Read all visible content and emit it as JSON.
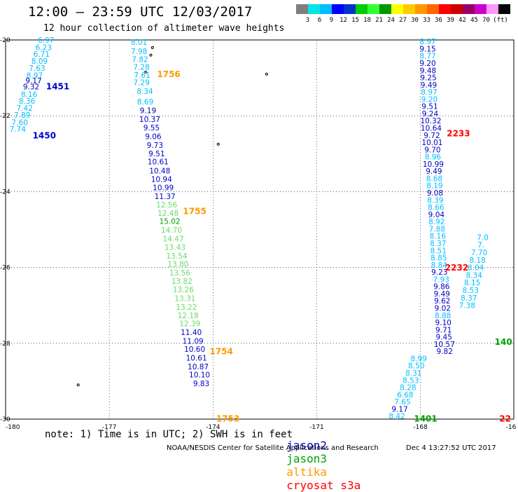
{
  "header": {
    "title": "12:00 – 23:59 UTC 12/03/2017",
    "subtitle": "12 hour collection of altimeter wave heights"
  },
  "color_scale": {
    "unit": "(ft)",
    "colors": [
      "#7f7f7f",
      "#00e6e6",
      "#00bfff",
      "#0000ff",
      "#0033cc",
      "#00cc00",
      "#33ff33",
      "#009900",
      "#ffff00",
      "#ffcc00",
      "#ff9900",
      "#ff6600",
      "#ff0000",
      "#cc0000",
      "#990066",
      "#cc00cc",
      "#ff99ff",
      "#000000"
    ],
    "labels": [
      "3",
      "6",
      "9",
      "12",
      "15",
      "18",
      "21",
      "24",
      "27",
      "30",
      "33",
      "36",
      "39",
      "42",
      "45",
      "70"
    ]
  },
  "axes": {
    "x_ticks": [
      "-180",
      "-177",
      "-174",
      "-171",
      "-168",
      "-16"
    ],
    "y_ticks": [
      "-20",
      "-22",
      "-24",
      "-26",
      "-28",
      "-30"
    ]
  },
  "satellite_colors": {
    "jason2": "#0000c8",
    "jason2_light": "#00bfff",
    "jason3": "#00a000",
    "jason3_light": "#66dd66",
    "altika": "#ff9900",
    "cryosat": "#ff0000"
  },
  "tracks": [
    {
      "id": "t1451",
      "time_labels": [
        {
          "text": "1451",
          "lat": -21.23,
          "color": "jason2"
        },
        {
          "text": "1450",
          "lat": -22.52,
          "color": "jason2"
        }
      ],
      "points": [
        {
          "lon": -178.83,
          "lat": -20.0,
          "v": "6.97",
          "c": "jason2_light"
        },
        {
          "lon": -178.9,
          "lat": -20.19,
          "v": "6.23",
          "c": "jason2_light"
        },
        {
          "lon": -178.96,
          "lat": -20.37,
          "v": "6.71",
          "c": "jason2_light"
        },
        {
          "lon": -179.02,
          "lat": -20.55,
          "v": "8.09",
          "c": "jason2_light"
        },
        {
          "lon": -179.09,
          "lat": -20.74,
          "v": "7.63",
          "c": "jason2_light"
        },
        {
          "lon": -179.16,
          "lat": -20.93,
          "v": "8.97",
          "c": "jason2_light"
        },
        {
          "lon": -179.19,
          "lat": -21.07,
          "v": "9.17",
          "c": "jason2"
        },
        {
          "lon": -179.26,
          "lat": -21.23,
          "v": "9.32",
          "c": "jason2"
        },
        {
          "lon": -179.32,
          "lat": -21.43,
          "v": "8.16",
          "c": "jason2_light"
        },
        {
          "lon": -179.38,
          "lat": -21.61,
          "v": "8.36",
          "c": "jason2_light"
        },
        {
          "lon": -179.45,
          "lat": -21.79,
          "v": "7.42",
          "c": "jason2_light"
        },
        {
          "lon": -179.52,
          "lat": -21.98,
          "v": "7.89",
          "c": "jason2_light"
        },
        {
          "lon": -179.59,
          "lat": -22.17,
          "v": "7.60",
          "c": "jason2_light"
        },
        {
          "lon": -179.65,
          "lat": -22.35,
          "v": "7.74",
          "c": "jason2_light"
        }
      ]
    },
    {
      "id": "t1756",
      "time_labels": [
        {
          "text": "1756",
          "lat": -20.91,
          "color": "altika"
        },
        {
          "text": "1755",
          "lat": -24.52,
          "color": "altika"
        },
        {
          "text": "1754",
          "lat": -28.22,
          "color": "altika"
        },
        {
          "text": "1753",
          "lat": -29.99,
          "color": "altika"
        }
      ],
      "points": [
        {
          "lon": -176.14,
          "lat": -20.06,
          "v": "8.01",
          "c": "jason2_light"
        },
        {
          "lon": -176.14,
          "lat": -20.3,
          "v": "7.98",
          "c": "jason2_light"
        },
        {
          "lon": -176.11,
          "lat": -20.51,
          "v": "7.82",
          "c": "jason2_light"
        },
        {
          "lon": -176.07,
          "lat": -20.71,
          "v": "7.28",
          "c": "jason2_light"
        },
        {
          "lon": -176.05,
          "lat": -20.92,
          "v": "7.61",
          "c": "jason2_light"
        },
        {
          "lon": -176.07,
          "lat": -21.12,
          "v": "7.29",
          "c": "jason2_light"
        },
        {
          "lon": -175.97,
          "lat": -21.35,
          "v": "8.34",
          "c": "jason2_light"
        },
        {
          "lon": -175.96,
          "lat": -21.63,
          "v": "8.69",
          "c": "jason2_light"
        },
        {
          "lon": -175.88,
          "lat": -21.86,
          "v": "9.19",
          "c": "jason2"
        },
        {
          "lon": -175.83,
          "lat": -22.09,
          "v": "10.37",
          "c": "jason2"
        },
        {
          "lon": -175.78,
          "lat": -22.31,
          "v": "9.55",
          "c": "jason2"
        },
        {
          "lon": -175.73,
          "lat": -22.54,
          "v": "9.06",
          "c": "jason2"
        },
        {
          "lon": -175.68,
          "lat": -22.77,
          "v": "9.73",
          "c": "jason2"
        },
        {
          "lon": -175.63,
          "lat": -22.99,
          "v": "9.51",
          "c": "jason2"
        },
        {
          "lon": -175.59,
          "lat": -23.21,
          "v": "10.61",
          "c": "jason2"
        },
        {
          "lon": -175.54,
          "lat": -23.45,
          "v": "10.48",
          "c": "jason2"
        },
        {
          "lon": -175.49,
          "lat": -23.67,
          "v": "10.94",
          "c": "jason2"
        },
        {
          "lon": -175.44,
          "lat": -23.89,
          "v": "10.99",
          "c": "jason2"
        },
        {
          "lon": -175.39,
          "lat": -24.12,
          "v": "11.37",
          "c": "jason2"
        },
        {
          "lon": -175.34,
          "lat": -24.34,
          "v": "12.56",
          "c": "jason3_light"
        },
        {
          "lon": -175.3,
          "lat": -24.57,
          "v": "12.48",
          "c": "jason3_light"
        },
        {
          "lon": -175.25,
          "lat": -24.78,
          "v": "15.02",
          "c": "jason3"
        },
        {
          "lon": -175.2,
          "lat": -25.01,
          "v": "14.70",
          "c": "jason3_light"
        },
        {
          "lon": -175.15,
          "lat": -25.24,
          "v": "14.47",
          "c": "jason3_light"
        },
        {
          "lon": -175.1,
          "lat": -25.46,
          "v": "13.43",
          "c": "jason3_light"
        },
        {
          "lon": -175.05,
          "lat": -25.69,
          "v": "13.54",
          "c": "jason3_light"
        },
        {
          "lon": -175.01,
          "lat": -25.91,
          "v": "13.80",
          "c": "jason3_light"
        },
        {
          "lon": -174.96,
          "lat": -26.14,
          "v": "13.56",
          "c": "jason3_light"
        },
        {
          "lon": -174.9,
          "lat": -26.36,
          "v": "13.82",
          "c": "jason3_light"
        },
        {
          "lon": -174.86,
          "lat": -26.58,
          "v": "13.26",
          "c": "jason3_light"
        },
        {
          "lon": -174.81,
          "lat": -26.81,
          "v": "13.31",
          "c": "jason3_light"
        },
        {
          "lon": -174.77,
          "lat": -27.04,
          "v": "13.22",
          "c": "jason3_light"
        },
        {
          "lon": -174.72,
          "lat": -27.26,
          "v": "12.18",
          "c": "jason3_light"
        },
        {
          "lon": -174.67,
          "lat": -27.48,
          "v": "12.39",
          "c": "jason3_light"
        },
        {
          "lon": -174.63,
          "lat": -27.71,
          "v": "11.40",
          "c": "jason2"
        },
        {
          "lon": -174.58,
          "lat": -27.94,
          "v": "11.09",
          "c": "jason2"
        },
        {
          "lon": -174.53,
          "lat": -28.15,
          "v": "10.60",
          "c": "jason2"
        },
        {
          "lon": -174.48,
          "lat": -28.38,
          "v": "10.61",
          "c": "jason2"
        },
        {
          "lon": -174.43,
          "lat": -28.61,
          "v": "10.87",
          "c": "jason2"
        },
        {
          "lon": -174.39,
          "lat": -28.83,
          "v": "10.10",
          "c": "jason2"
        },
        {
          "lon": -174.34,
          "lat": -29.06,
          "v": "9.83",
          "c": "jason2"
        }
      ]
    },
    {
      "id": "t2233",
      "time_labels": [
        {
          "text": "2233",
          "lat": -22.47,
          "color": "cryosat"
        },
        {
          "text": "2232",
          "lat": -26.01,
          "color": "cryosat"
        },
        {
          "text": "1401",
          "lat": -29.99,
          "color": "jason3"
        },
        {
          "text": "140",
          "lat": -27.97,
          "color": "jason3"
        },
        {
          "text": "22",
          "lat": -29.99,
          "color": "cryosat"
        }
      ],
      "points": [
        {
          "lon": -167.79,
          "lat": -20.04,
          "v": "8.97",
          "c": "jason2_light"
        },
        {
          "lon": -167.79,
          "lat": -20.23,
          "v": "9.15",
          "c": "jason2"
        },
        {
          "lon": -167.79,
          "lat": -20.42,
          "v": "8.77",
          "c": "jason2_light"
        },
        {
          "lon": -167.79,
          "lat": -20.61,
          "v": "9.20",
          "c": "jason2"
        },
        {
          "lon": -167.78,
          "lat": -20.8,
          "v": "9.48",
          "c": "jason2"
        },
        {
          "lon": -167.77,
          "lat": -20.99,
          "v": "9.25",
          "c": "jason2"
        },
        {
          "lon": -167.76,
          "lat": -21.18,
          "v": "9.49",
          "c": "jason2"
        },
        {
          "lon": -167.75,
          "lat": -21.37,
          "v": "8.97",
          "c": "jason2_light"
        },
        {
          "lon": -167.74,
          "lat": -21.56,
          "v": "9.20",
          "c": "jason2_light"
        },
        {
          "lon": -167.73,
          "lat": -21.75,
          "v": "9.51",
          "c": "jason2"
        },
        {
          "lon": -167.72,
          "lat": -21.94,
          "v": "9.24",
          "c": "jason2"
        },
        {
          "lon": -167.7,
          "lat": -22.13,
          "v": "10.32",
          "c": "jason2"
        },
        {
          "lon": -167.69,
          "lat": -22.32,
          "v": "10.64",
          "c": "jason2"
        },
        {
          "lon": -167.67,
          "lat": -22.51,
          "v": "9.72",
          "c": "jason2"
        },
        {
          "lon": -167.66,
          "lat": -22.7,
          "v": "10.01",
          "c": "jason2"
        },
        {
          "lon": -167.65,
          "lat": -22.89,
          "v": "9.70",
          "c": "jason2"
        },
        {
          "lon": -167.64,
          "lat": -23.08,
          "v": "8.96",
          "c": "jason2_light"
        },
        {
          "lon": -167.63,
          "lat": -23.27,
          "v": "10.99",
          "c": "jason2"
        },
        {
          "lon": -167.61,
          "lat": -23.46,
          "v": "9.49",
          "c": "jason2"
        },
        {
          "lon": -167.6,
          "lat": -23.65,
          "v": "8.68",
          "c": "jason2_light"
        },
        {
          "lon": -167.59,
          "lat": -23.84,
          "v": "8.19",
          "c": "jason2_light"
        },
        {
          "lon": -167.58,
          "lat": -24.03,
          "v": "9.08",
          "c": "jason2"
        },
        {
          "lon": -167.57,
          "lat": -24.22,
          "v": "8.39",
          "c": "jason2_light"
        },
        {
          "lon": -167.55,
          "lat": -24.41,
          "v": "8.66",
          "c": "jason2_light"
        },
        {
          "lon": -167.54,
          "lat": -24.6,
          "v": "9.04",
          "c": "jason2"
        },
        {
          "lon": -167.53,
          "lat": -24.79,
          "v": "8.92",
          "c": "jason2_light"
        },
        {
          "lon": -167.52,
          "lat": -24.98,
          "v": "7.88",
          "c": "jason2_light"
        },
        {
          "lon": -167.5,
          "lat": -25.17,
          "v": "8.16",
          "c": "jason2_light"
        },
        {
          "lon": -167.49,
          "lat": -25.36,
          "v": "8.37",
          "c": "jason2_light"
        },
        {
          "lon": -167.48,
          "lat": -25.55,
          "v": "8.51",
          "c": "jason2_light"
        },
        {
          "lon": -167.47,
          "lat": -25.74,
          "v": "8.85",
          "c": "jason2_light"
        },
        {
          "lon": -167.46,
          "lat": -25.93,
          "v": "8.84",
          "c": "jason2_light"
        },
        {
          "lon": -167.45,
          "lat": -26.12,
          "v": "9.23",
          "c": "jason2"
        },
        {
          "lon": -167.4,
          "lat": -26.31,
          "v": "7.93",
          "c": "jason2_light"
        },
        {
          "lon": -167.39,
          "lat": -26.5,
          "v": "9.86",
          "c": "jason2"
        },
        {
          "lon": -167.38,
          "lat": -26.69,
          "v": "9.49",
          "c": "jason2"
        },
        {
          "lon": -167.37,
          "lat": -26.88,
          "v": "9.62",
          "c": "jason2"
        },
        {
          "lon": -167.36,
          "lat": -27.07,
          "v": "9.02",
          "c": "jason2"
        },
        {
          "lon": -167.35,
          "lat": -27.26,
          "v": "8.88",
          "c": "jason2_light"
        },
        {
          "lon": -167.34,
          "lat": -27.45,
          "v": "9.10",
          "c": "jason2"
        },
        {
          "lon": -167.33,
          "lat": -27.64,
          "v": "9.71",
          "c": "jason2"
        },
        {
          "lon": -167.32,
          "lat": -27.83,
          "v": "9.45",
          "c": "jason2"
        },
        {
          "lon": -167.31,
          "lat": -28.02,
          "v": "10.57",
          "c": "jason2"
        },
        {
          "lon": -167.3,
          "lat": -28.21,
          "v": "9.82",
          "c": "jason2"
        }
      ]
    },
    {
      "id": "t_left_diag",
      "time_labels": [],
      "points": [
        {
          "lon": -168.05,
          "lat": -28.4,
          "v": "8.99",
          "c": "jason2_light"
        },
        {
          "lon": -168.12,
          "lat": -28.59,
          "v": "8.50",
          "c": "jason2_light"
        },
        {
          "lon": -168.2,
          "lat": -28.78,
          "v": "8.31",
          "c": "jason2_light"
        },
        {
          "lon": -168.28,
          "lat": -28.97,
          "v": "8.53",
          "c": "jason2_light"
        },
        {
          "lon": -168.36,
          "lat": -29.16,
          "v": "8.28",
          "c": "jason2_light"
        },
        {
          "lon": -168.44,
          "lat": -29.35,
          "v": "6.68",
          "c": "jason2_light"
        },
        {
          "lon": -168.52,
          "lat": -29.54,
          "v": "7.65",
          "c": "jason2_light"
        },
        {
          "lon": -168.6,
          "lat": -29.73,
          "v": "9.17",
          "c": "jason2"
        },
        {
          "lon": -168.68,
          "lat": -29.92,
          "v": "8.42",
          "c": "jason2_light"
        }
      ]
    },
    {
      "id": "t_right_diag",
      "time_labels": [],
      "points": [
        {
          "lon": -166.2,
          "lat": -25.2,
          "v": "7.0",
          "c": "jason2_light"
        },
        {
          "lon": -166.25,
          "lat": -25.4,
          "v": "7.",
          "c": "jason2_light"
        },
        {
          "lon": -166.3,
          "lat": -25.6,
          "v": "7.70",
          "c": "jason2_light"
        },
        {
          "lon": -166.35,
          "lat": -25.8,
          "v": "8.18",
          "c": "jason2_light"
        },
        {
          "lon": -166.4,
          "lat": -26.0,
          "v": "8.04",
          "c": "jason2_light"
        },
        {
          "lon": -166.45,
          "lat": -26.2,
          "v": "8.34",
          "c": "jason2_light"
        },
        {
          "lon": -166.5,
          "lat": -26.4,
          "v": "8.15",
          "c": "jason2_light"
        },
        {
          "lon": -166.55,
          "lat": -26.6,
          "v": "8.53",
          "c": "jason2_light"
        },
        {
          "lon": -166.6,
          "lat": -26.8,
          "v": "8.37",
          "c": "jason2_light"
        },
        {
          "lon": -166.65,
          "lat": -27.0,
          "v": "7.38",
          "c": "jason2_light"
        }
      ]
    }
  ],
  "note": "note: 1) Time is in UTC; 2) SWH is in feet",
  "legend": [
    {
      "label": "jason2",
      "color": "#0000c8"
    },
    {
      "label": "jason3",
      "color": "#00a000"
    },
    {
      "label": "altika",
      "color": "#ff9900"
    },
    {
      "label": "cryosat s3a",
      "color": "#ff0000"
    }
  ],
  "credit": "NOAA/NESDIS Center for Satellite Applications and Research",
  "credit_timestamp": "Dec  4 13:27:52 UTC 2017"
}
